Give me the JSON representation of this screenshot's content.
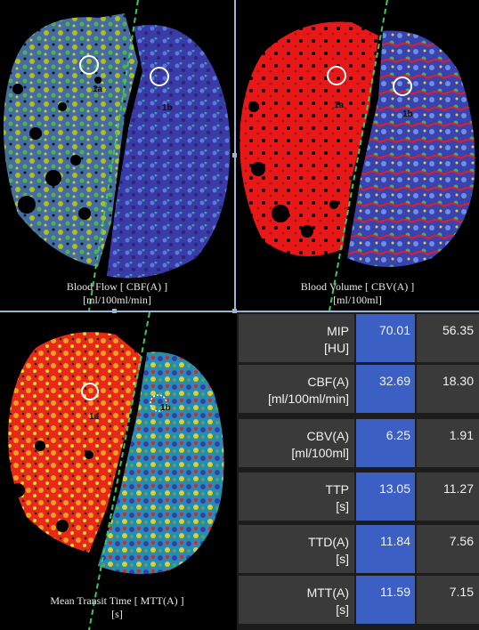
{
  "panels": {
    "cbf": {
      "caption_line1": "Blood Flow [ CBF(A) ]",
      "caption_line2": "[ml/100ml/min]"
    },
    "cbv": {
      "caption_line1": "Blood Volume [ CBV(A) ]",
      "caption_line2": "[ml/100ml]"
    },
    "mtt": {
      "caption_line1": "Mean Transit Time [ MTT(A) ]",
      "caption_line2": "[s]"
    }
  },
  "roi_labels": {
    "a": "1a",
    "b": "1b"
  },
  "table": {
    "rows": [
      {
        "name": "MIP",
        "unit": "[HU]",
        "a": "70.01",
        "b": "56.35"
      },
      {
        "name": "CBF(A)",
        "unit": "[ml/100ml/min]",
        "a": "32.69",
        "b": "18.30"
      },
      {
        "name": "CBV(A)",
        "unit": "[ml/100ml]",
        "a": "6.25",
        "b": "1.91"
      },
      {
        "name": "TTP",
        "unit": "[s]",
        "a": "13.05",
        "b": "11.27"
      },
      {
        "name": "TTD(A)",
        "unit": "[s]",
        "a": "11.84",
        "b": "7.56"
      },
      {
        "name": "MTT(A)",
        "unit": "[s]",
        "a": "11.59",
        "b": "7.15"
      }
    ]
  },
  "colors": {
    "highlight_column": "#3b5fc2",
    "cell": "#3a3a3a",
    "divider": "#9ab4d8",
    "midline": "#3cc85a"
  }
}
